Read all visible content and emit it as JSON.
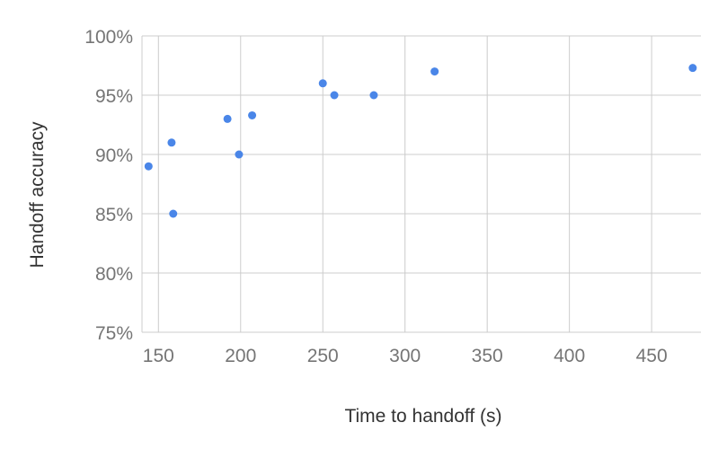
{
  "chart_data": {
    "type": "scatter",
    "title": "",
    "xlabel": "Time to handoff (s)",
    "ylabel": "Handoff accuracy",
    "xlim": [
      140,
      480
    ],
    "ylim": [
      0.75,
      1.0
    ],
    "x_ticks": [
      150,
      200,
      250,
      300,
      350,
      400,
      450
    ],
    "x_tick_labels": [
      "150",
      "200",
      "250",
      "300",
      "350",
      "400",
      "450"
    ],
    "y_ticks": [
      0.75,
      0.8,
      0.85,
      0.9,
      0.95,
      1.0
    ],
    "y_tick_labels": [
      "75%",
      "80%",
      "85%",
      "90%",
      "95%",
      "100%"
    ],
    "grid": true,
    "legend": "none",
    "colors": {
      "points": "#4a86e8",
      "grid": "#cccccc",
      "tick_text": "#757575",
      "axis_title": "#333333"
    },
    "points": [
      {
        "x": 144,
        "y": 0.89
      },
      {
        "x": 158,
        "y": 0.91
      },
      {
        "x": 159,
        "y": 0.85
      },
      {
        "x": 192,
        "y": 0.93
      },
      {
        "x": 199,
        "y": 0.9
      },
      {
        "x": 207,
        "y": 0.933
      },
      {
        "x": 250,
        "y": 0.96
      },
      {
        "x": 257,
        "y": 0.95
      },
      {
        "x": 281,
        "y": 0.95
      },
      {
        "x": 318,
        "y": 0.97
      },
      {
        "x": 475,
        "y": 0.973
      }
    ]
  }
}
